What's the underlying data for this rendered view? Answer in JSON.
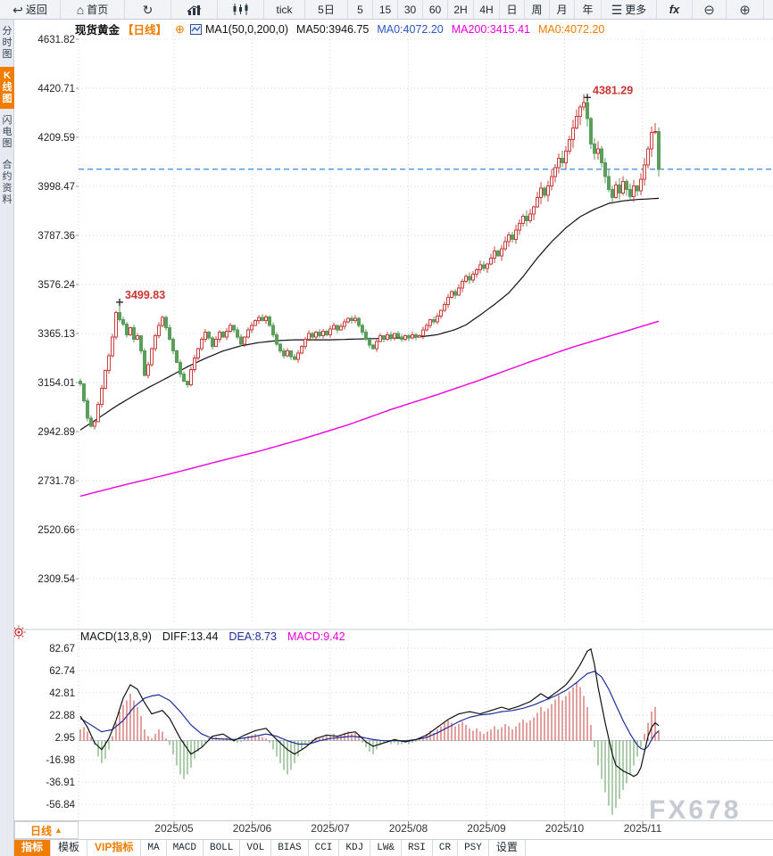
{
  "colors": {
    "accent_orange": "#f07c00",
    "up_red": "#c9403f",
    "down_green": "#5b9e5b",
    "ma50_black": "#111111",
    "ma200_magenta": "#ee00dd",
    "ma0_blue": "#2b56c5",
    "ma0_orange": "#f07c00",
    "last_price_line": "#1e7ce0",
    "annotation_red": "#cc3333",
    "dea_blue": "#1b2f9b",
    "diff_black": "#111111",
    "grid": "#d2d6dc",
    "axis_text": "#222222"
  },
  "toolbar": {
    "items": [
      {
        "name": "back",
        "label": "返回",
        "icon": "back"
      },
      {
        "name": "home",
        "label": "首页",
        "icon": "home"
      },
      {
        "name": "refresh",
        "label": "",
        "icon": "refresh"
      },
      {
        "name": "area-chart",
        "label": "",
        "icon": "area"
      },
      {
        "name": "candle-chart",
        "label": "",
        "icon": "candles"
      },
      {
        "name": "tick",
        "label": "tick",
        "icon": ""
      },
      {
        "name": "period-5d",
        "label": "5日",
        "icon": ""
      },
      {
        "name": "period-5",
        "label": "5",
        "icon": ""
      },
      {
        "name": "period-15",
        "label": "15",
        "icon": ""
      },
      {
        "name": "period-30",
        "label": "30",
        "icon": ""
      },
      {
        "name": "period-60",
        "label": "60",
        "icon": ""
      },
      {
        "name": "period-2h",
        "label": "2H",
        "icon": ""
      },
      {
        "name": "period-4h",
        "label": "4H",
        "icon": ""
      },
      {
        "name": "period-day",
        "label": "日",
        "icon": ""
      },
      {
        "name": "period-week",
        "label": "周",
        "icon": ""
      },
      {
        "name": "period-month",
        "label": "月",
        "icon": ""
      },
      {
        "name": "period-year",
        "label": "年",
        "icon": ""
      },
      {
        "name": "more",
        "label": "更多",
        "icon": "menu"
      },
      {
        "name": "fx",
        "label": "fx",
        "icon": ""
      },
      {
        "name": "zoom-out",
        "label": "",
        "icon": "zoomout"
      },
      {
        "name": "zoom-in",
        "label": "",
        "icon": "zoomin"
      }
    ]
  },
  "sidebar": {
    "tabs": [
      {
        "label": "分时图",
        "active": false
      },
      {
        "label": "K线图",
        "active": true
      },
      {
        "label": "闪电图",
        "active": false
      },
      {
        "label": "合约资料",
        "active": false
      }
    ]
  },
  "chart_header": {
    "symbol": "现货黄金",
    "period": "【日线】",
    "add_icon": "⊕",
    "formula": "MA1(50,0,200,0)",
    "ma50": "MA50:3946.75",
    "ma0_blue": "MA0:4072.20",
    "ma200": "MA200:3415.41",
    "ma0_orange": "MA0:4072.20"
  },
  "macd_header": {
    "title": "MACD(13,8,9)",
    "diff": "DIFF:13.44",
    "dea": "DEA:8.73",
    "macd": "MACD:9.42"
  },
  "period_selector": {
    "label": "日线",
    "arrow": "▲"
  },
  "bottom_tabs": [
    {
      "label": "指标",
      "active": true,
      "vip": false,
      "mono": false
    },
    {
      "label": "模板",
      "active": false,
      "vip": false,
      "mono": false
    },
    {
      "label": "VIP指标",
      "active": false,
      "vip": true,
      "mono": false
    },
    {
      "label": "MA",
      "mono": true
    },
    {
      "label": "MACD",
      "mono": true
    },
    {
      "label": "BOLL",
      "mono": true
    },
    {
      "label": "VOL",
      "mono": true
    },
    {
      "label": "BIAS",
      "mono": true
    },
    {
      "label": "CCI",
      "mono": true
    },
    {
      "label": "KDJ",
      "mono": true
    },
    {
      "label": "LW&",
      "mono": true
    },
    {
      "label": "RSI",
      "mono": true
    },
    {
      "label": "CR",
      "mono": true
    },
    {
      "label": "PSY",
      "mono": true
    },
    {
      "label": "设置",
      "active": false,
      "vip": false,
      "mono": false
    }
  ],
  "watermark": "FX678",
  "chart_data": {
    "type": "candlestick",
    "title": "现货黄金 日线",
    "y_ticks": [
      "4631.82",
      "4420.71",
      "4209.59",
      "3998.47",
      "3787.36",
      "3576.24",
      "3365.13",
      "3154.01",
      "2942.89",
      "2731.78",
      "2520.66",
      "2309.54"
    ],
    "x_ticks": [
      "2025/05",
      "2025/06",
      "2025/07",
      "2025/08",
      "2025/09",
      "2025/10",
      "2025/11"
    ],
    "last_price": 4072.2,
    "open_first": 3160,
    "closes": [
      3148,
      3075,
      3000,
      2966,
      2985,
      3060,
      3130,
      3205,
      3270,
      3350,
      3455,
      3425,
      3405,
      3360,
      3390,
      3340,
      3355,
      3290,
      3185,
      3230,
      3300,
      3355,
      3400,
      3435,
      3390,
      3340,
      3290,
      3240,
      3190,
      3160,
      3145,
      3210,
      3260,
      3300,
      3340,
      3370,
      3345,
      3310,
      3340,
      3370,
      3350,
      3375,
      3400,
      3380,
      3350,
      3320,
      3350,
      3380,
      3400,
      3420,
      3435,
      3420,
      3437,
      3400,
      3360,
      3320,
      3290,
      3270,
      3290,
      3265,
      3253,
      3280,
      3310,
      3340,
      3365,
      3350,
      3370,
      3355,
      3375,
      3360,
      3385,
      3400,
      3380,
      3395,
      3415,
      3430,
      3420,
      3430,
      3400,
      3370,
      3340,
      3315,
      3300,
      3330,
      3355,
      3340,
      3360,
      3345,
      3365,
      3350,
      3340,
      3355,
      3345,
      3360,
      3350,
      3355,
      3380,
      3400,
      3425,
      3415,
      3440,
      3465,
      3490,
      3520,
      3545,
      3530,
      3560,
      3590,
      3610,
      3595,
      3620,
      3640,
      3660,
      3645,
      3665,
      3690,
      3720,
      3700,
      3730,
      3760,
      3790,
      3770,
      3810,
      3840,
      3870,
      3850,
      3880,
      3910,
      3950,
      3990,
      3960,
      4000,
      4040,
      4080,
      4120,
      4100,
      4150,
      4200,
      4250,
      4300,
      4340,
      4360,
      4290,
      4180,
      4140,
      4160,
      4100,
      4040,
      3985,
      3950,
      4005,
      3970,
      4020,
      3985,
      3955,
      4000,
      3980,
      4030,
      4090,
      4160,
      4230,
      4235,
      4072.2
    ],
    "annotations": [
      {
        "index": 11,
        "price": 3499.83,
        "label": "3499.83"
      },
      {
        "index": 142,
        "price": 4381.29,
        "label": "4381.29"
      }
    ],
    "ma50_anchors": [
      [
        0,
        2950
      ],
      [
        5,
        3000
      ],
      [
        10,
        3052
      ],
      [
        15,
        3098
      ],
      [
        20,
        3140
      ],
      [
        25,
        3180
      ],
      [
        30,
        3222
      ],
      [
        35,
        3258
      ],
      [
        40,
        3290
      ],
      [
        45,
        3312
      ],
      [
        50,
        3326
      ],
      [
        55,
        3334
      ],
      [
        60,
        3338
      ],
      [
        70,
        3338
      ],
      [
        80,
        3342
      ],
      [
        90,
        3346
      ],
      [
        95,
        3350
      ],
      [
        100,
        3360
      ],
      [
        105,
        3382
      ],
      [
        108,
        3402
      ],
      [
        112,
        3445
      ],
      [
        116,
        3490
      ],
      [
        120,
        3540
      ],
      [
        124,
        3610
      ],
      [
        128,
        3690
      ],
      [
        132,
        3760
      ],
      [
        136,
        3820
      ],
      [
        140,
        3868
      ],
      [
        144,
        3900
      ],
      [
        148,
        3925
      ],
      [
        152,
        3936
      ],
      [
        156,
        3942
      ],
      [
        162,
        3947
      ]
    ],
    "ma200_anchors": [
      [
        0,
        2665
      ],
      [
        12,
        2712
      ],
      [
        25,
        2760
      ],
      [
        37,
        2808
      ],
      [
        50,
        2858
      ],
      [
        62,
        2910
      ],
      [
        75,
        2972
      ],
      [
        87,
        3038
      ],
      [
        100,
        3102
      ],
      [
        112,
        3165
      ],
      [
        125,
        3238
      ],
      [
        137,
        3302
      ],
      [
        150,
        3362
      ],
      [
        162,
        3418
      ]
    ],
    "macd": {
      "params": [
        13,
        8,
        9
      ],
      "diff_last": 13.44,
      "dea_last": 8.73,
      "macd_last": 9.42,
      "y_ticks": [
        "82.67",
        "62.74",
        "42.81",
        "22.88",
        "2.95",
        "-16.98",
        "-36.91",
        "-56.84"
      ],
      "histogram": [
        10,
        12,
        8,
        3,
        -4,
        -14,
        -20,
        -16,
        -8,
        4,
        16,
        26,
        32,
        36,
        42,
        36,
        30,
        22,
        10,
        4,
        2,
        6,
        10,
        8,
        2,
        -4,
        -12,
        -22,
        -30,
        -34,
        -30,
        -24,
        -16,
        -10,
        -6,
        -2,
        2,
        4,
        3,
        1,
        2,
        3,
        1,
        -1,
        -2,
        -1,
        2,
        4,
        5,
        6,
        5,
        3,
        2,
        -2,
        -8,
        -14,
        -20,
        -26,
        -30,
        -26,
        -20,
        -14,
        -8,
        -4,
        -2,
        1,
        3,
        2,
        3,
        4,
        5,
        6,
        4,
        5,
        7,
        8,
        6,
        7,
        4,
        -2,
        -6,
        -10,
        -12,
        -8,
        -4,
        -2,
        -1,
        -3,
        -2,
        -4,
        -3,
        -2,
        -3,
        -2,
        -1,
        1,
        3,
        6,
        9,
        7,
        10,
        13,
        16,
        18,
        16,
        13,
        15,
        17,
        14,
        11,
        9,
        11,
        8,
        6,
        8,
        10,
        13,
        10,
        12,
        15,
        13,
        10,
        13,
        16,
        19,
        16,
        18,
        21,
        25,
        30,
        26,
        29,
        33,
        37,
        41,
        36,
        40,
        44,
        48,
        52,
        48,
        40,
        30,
        14,
        -6,
        -22,
        -34,
        -46,
        -58,
        -66,
        -60,
        -52,
        -44,
        -38,
        -30,
        -22,
        -14,
        -6,
        6,
        16,
        26,
        30,
        9.42
      ],
      "diff_anchors": [
        [
          0,
          22
        ],
        [
          2,
          12
        ],
        [
          4,
          -2
        ],
        [
          6,
          -8
        ],
        [
          8,
          2
        ],
        [
          10,
          18
        ],
        [
          12,
          38
        ],
        [
          14,
          50
        ],
        [
          16,
          46
        ],
        [
          18,
          34
        ],
        [
          20,
          24
        ],
        [
          23,
          27
        ],
        [
          25,
          20
        ],
        [
          28,
          2
        ],
        [
          31,
          -12
        ],
        [
          34,
          -6
        ],
        [
          37,
          4
        ],
        [
          40,
          6
        ],
        [
          43,
          0
        ],
        [
          46,
          5
        ],
        [
          49,
          9
        ],
        [
          52,
          11
        ],
        [
          55,
          1
        ],
        [
          58,
          -8
        ],
        [
          60,
          -12
        ],
        [
          63,
          -6
        ],
        [
          66,
          2
        ],
        [
          69,
          5
        ],
        [
          72,
          4
        ],
        [
          75,
          7
        ],
        [
          77,
          8
        ],
        [
          80,
          -1
        ],
        [
          82,
          -5
        ],
        [
          85,
          -2
        ],
        [
          88,
          1
        ],
        [
          91,
          -1
        ],
        [
          94,
          1
        ],
        [
          97,
          5
        ],
        [
          100,
          12
        ],
        [
          103,
          19
        ],
        [
          106,
          24
        ],
        [
          109,
          26
        ],
        [
          112,
          24
        ],
        [
          115,
          27
        ],
        [
          118,
          30
        ],
        [
          120,
          28
        ],
        [
          123,
          31
        ],
        [
          126,
          35
        ],
        [
          129,
          42
        ],
        [
          131,
          38
        ],
        [
          134,
          45
        ],
        [
          136,
          50
        ],
        [
          138,
          58
        ],
        [
          140,
          68
        ],
        [
          142,
          80
        ],
        [
          143,
          82
        ],
        [
          144,
          68
        ],
        [
          145,
          48
        ],
        [
          146,
          32
        ],
        [
          147,
          16
        ],
        [
          148,
          2
        ],
        [
          149,
          -12
        ],
        [
          150,
          -22
        ],
        [
          152,
          -27
        ],
        [
          154,
          -30
        ],
        [
          155,
          -32
        ],
        [
          156,
          -30
        ],
        [
          157,
          -24
        ],
        [
          158,
          -10
        ],
        [
          159,
          4
        ],
        [
          160,
          12
        ],
        [
          161,
          16
        ],
        [
          162,
          13.44
        ]
      ],
      "dea_anchors": [
        [
          0,
          20
        ],
        [
          3,
          14
        ],
        [
          6,
          8
        ],
        [
          9,
          10
        ],
        [
          12,
          18
        ],
        [
          15,
          30
        ],
        [
          18,
          38
        ],
        [
          20,
          40
        ],
        [
          22,
          41
        ],
        [
          25,
          36
        ],
        [
          28,
          26
        ],
        [
          31,
          14
        ],
        [
          34,
          6
        ],
        [
          37,
          2
        ],
        [
          43,
          1
        ],
        [
          49,
          4
        ],
        [
          52,
          6
        ],
        [
          55,
          4
        ],
        [
          58,
          0
        ],
        [
          61,
          -3
        ],
        [
          64,
          -3
        ],
        [
          67,
          0
        ],
        [
          70,
          2
        ],
        [
          73,
          3
        ],
        [
          76,
          4
        ],
        [
          79,
          3
        ],
        [
          82,
          1
        ],
        [
          85,
          0
        ],
        [
          91,
          0
        ],
        [
          94,
          1
        ],
        [
          97,
          3
        ],
        [
          100,
          7
        ],
        [
          103,
          12
        ],
        [
          106,
          17
        ],
        [
          109,
          21
        ],
        [
          112,
          23
        ],
        [
          115,
          24
        ],
        [
          118,
          26
        ],
        [
          121,
          27
        ],
        [
          124,
          29
        ],
        [
          127,
          32
        ],
        [
          130,
          36
        ],
        [
          133,
          40
        ],
        [
          136,
          45
        ],
        [
          139,
          52
        ],
        [
          142,
          60
        ],
        [
          144,
          62
        ],
        [
          146,
          57
        ],
        [
          148,
          46
        ],
        [
          150,
          32
        ],
        [
          152,
          18
        ],
        [
          154,
          6
        ],
        [
          156,
          -4
        ],
        [
          157,
          -7
        ],
        [
          158,
          -8
        ],
        [
          159,
          -5
        ],
        [
          160,
          1
        ],
        [
          161,
          6
        ],
        [
          162,
          8.73
        ]
      ]
    }
  }
}
